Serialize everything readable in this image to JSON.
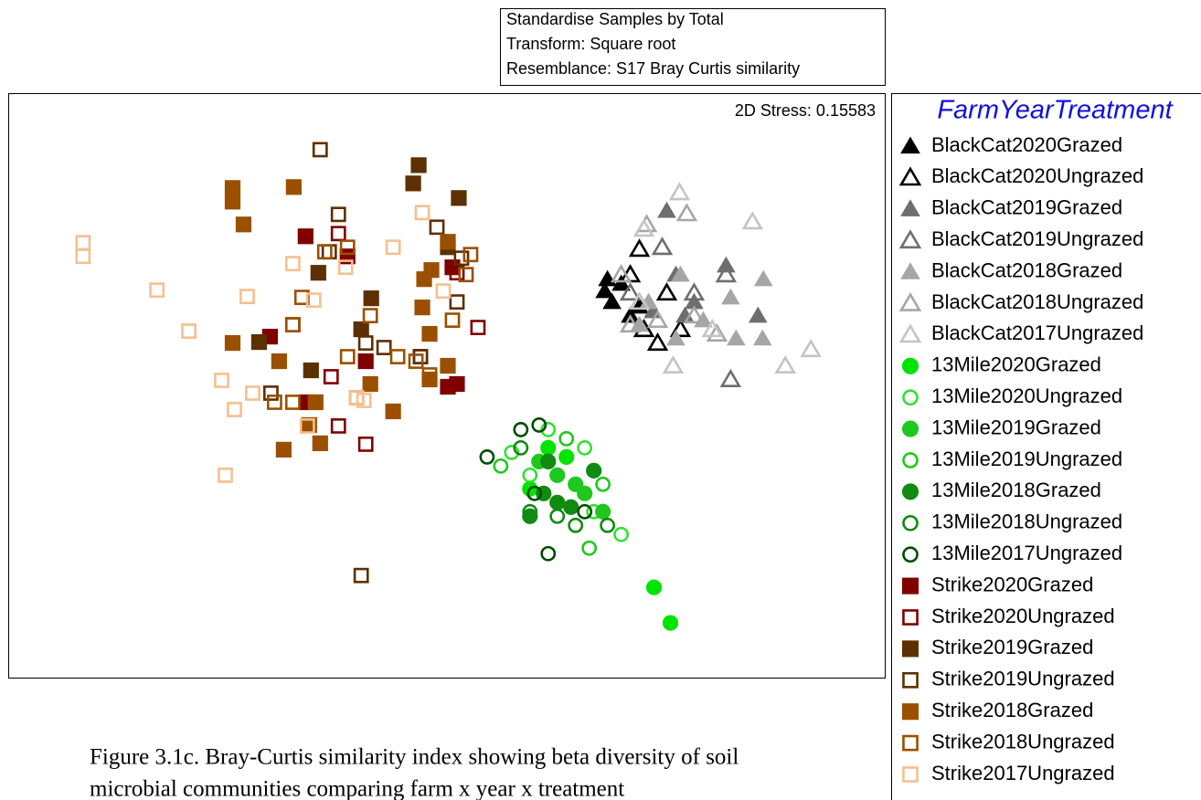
{
  "chart_data": {
    "type": "scatter",
    "info_box": [
      "Standardise Samples by Total",
      "Transform: Square root",
      "Resemblance: S17 Bray Curtis similarity"
    ],
    "annotation": "2D Stress: 0.15583",
    "legend_title": "FarmYearTreatment",
    "legend": "right",
    "caption_lines": [
      "Figure 3.1c. Bray-Curtis similarity index showing beta diversity of soil",
      "microbial communities comparing farm x year x treatment"
    ],
    "xlim": [
      0,
      96
    ],
    "ylim": [
      0,
      64
    ],
    "series": [
      {
        "name": "BlackCat2020Grazed",
        "color": "#000000",
        "marker": "triangle",
        "filled": true,
        "x": [
          65.3,
          66.1,
          67.1,
          68.1,
          69.1,
          65.6
        ],
        "y": [
          42.4,
          41.2,
          43.2,
          39.7,
          40.7,
          43.7
        ]
      },
      {
        "name": "BlackCat2020Ungrazed",
        "color": "#000000",
        "marker": "triangle",
        "filled": false,
        "x": [
          69.1,
          71.1,
          68.1,
          72.1,
          73.6,
          69.6
        ],
        "y": [
          47.0,
          36.7,
          44.2,
          42.2,
          38.2,
          38.2
        ]
      },
      {
        "name": "BlackCat2019Grazed",
        "color": "#6e6e6e",
        "marker": "triangle",
        "filled": true,
        "x": [
          72.1,
          75.1,
          78.6,
          82.1,
          73.1,
          70.6,
          74.1
        ],
        "y": [
          51.2,
          41.2,
          45.2,
          39.7,
          44.2,
          40.2,
          39.7
        ]
      },
      {
        "name": "BlackCat2019Ungrazed",
        "color": "#6e6e6e",
        "marker": "triangle",
        "filled": false,
        "x": [
          79.1,
          78.6,
          71.6,
          75.1,
          68.1
        ],
        "y": [
          32.7,
          44.2,
          47.2,
          42.2,
          42.2
        ]
      },
      {
        "name": "BlackCat2018Grazed",
        "color": "#a6a6a6",
        "marker": "triangle",
        "filled": true,
        "x": [
          82.7,
          79.1,
          79.7,
          82.6,
          73.6,
          70.1,
          76.1,
          69.1,
          73.1
        ],
        "y": [
          43.7,
          41.7,
          37.2,
          37.2,
          44.2,
          41.2,
          39.2,
          38.7,
          37.2
        ]
      },
      {
        "name": "BlackCat2018Ungrazed",
        "color": "#a6a6a6",
        "marker": "triangle",
        "filled": false,
        "x": [
          74.3,
          69.9,
          77.6,
          67.1,
          71.1,
          75.1,
          68.1
        ],
        "y": [
          50.9,
          49.7,
          37.7,
          44.2,
          39.2,
          39.7,
          38.7
        ]
      },
      {
        "name": "BlackCat2017Ungrazed",
        "color": "#c4c4c4",
        "marker": "triangle",
        "filled": false,
        "x": [
          73.5,
          81.5,
          87.9,
          85.1,
          72.8,
          69.6,
          77.1,
          69.1
        ],
        "y": [
          53.2,
          50.0,
          36.0,
          34.2,
          34.2,
          49.2,
          38.2,
          41.2
        ]
      },
      {
        "name": "13Mile2020Grazed",
        "color": "#00e400",
        "marker": "circle",
        "filled": true,
        "x": [
          70.7,
          72.5,
          57.1,
          61.1,
          59.1
        ],
        "y": [
          9.9,
          6.0,
          20.7,
          24.2,
          25.2
        ]
      },
      {
        "name": "13Mile2020Ungrazed",
        "color": "#33e033",
        "marker": "circle",
        "filled": false,
        "x": [
          55.1,
          57.1,
          63.1,
          67.1,
          59.1,
          64.1
        ],
        "y": [
          24.7,
          22.2,
          25.2,
          15.7,
          27.2,
          18.2
        ]
      },
      {
        "name": "13Mile2019Grazed",
        "color": "#1ec81e",
        "marker": "circle",
        "filled": true,
        "x": [
          60.1,
          62.1,
          65.1,
          58.1,
          63.1
        ],
        "y": [
          22.2,
          21.2,
          18.2,
          23.7,
          20.2
        ]
      },
      {
        "name": "13Mile2019Ungrazed",
        "color": "#1ec81e",
        "marker": "circle",
        "filled": false,
        "x": [
          53.9,
          61.1,
          65.1,
          63.6
        ],
        "y": [
          23.2,
          26.2,
          21.2,
          14.2
        ]
      },
      {
        "name": "13Mile2018Grazed",
        "color": "#108a10",
        "marker": "circle",
        "filled": true,
        "x": [
          58.6,
          60.1,
          61.6,
          57.1,
          64.1,
          59.1
        ],
        "y": [
          20.2,
          19.2,
          18.7,
          17.7,
          22.7,
          23.7
        ]
      },
      {
        "name": "13Mile2018Ungrazed",
        "color": "#108a10",
        "marker": "circle",
        "filled": false,
        "x": [
          62.1,
          57.1,
          65.6,
          60.1,
          56.1
        ],
        "y": [
          16.7,
          18.2,
          16.7,
          17.7,
          25.2
        ]
      },
      {
        "name": "13Mile2017Ungrazed",
        "color": "#004d00",
        "marker": "circle",
        "filled": false,
        "x": [
          52.4,
          59.1,
          56.1,
          58.1,
          57.6,
          63.1
        ],
        "y": [
          24.2,
          13.6,
          27.2,
          27.7,
          20.2,
          18.2
        ]
      },
      {
        "name": "Strike2020Grazed",
        "color": "#800000",
        "marker": "square",
        "filled": true,
        "x": [
          32.5,
          37.1,
          28.6,
          48.6,
          39.1,
          48.1,
          49.1,
          32.6
        ],
        "y": [
          48.4,
          46.2,
          37.4,
          45.0,
          34.7,
          31.9,
          32.2,
          30.2
        ]
      },
      {
        "name": "Strike2020Ungrazed",
        "color": "#800000",
        "marker": "square",
        "filled": false,
        "x": [
          51.4,
          36.1,
          39.1,
          36.1,
          35.3,
          49.1,
          45.1
        ],
        "y": [
          38.4,
          48.7,
          25.6,
          27.6,
          33.0,
          44.4,
          35.2
        ]
      },
      {
        "name": "Strike2019Grazed",
        "color": "#5c3000",
        "marker": "square",
        "filled": true,
        "x": [
          44.9,
          44.3,
          49.3,
          39.7,
          33.9,
          27.4,
          33.1,
          48.1,
          38.6
        ],
        "y": [
          56.2,
          54.2,
          52.6,
          41.6,
          44.4,
          36.8,
          33.7,
          47.2,
          38.2
        ]
      },
      {
        "name": "Strike2019Ungrazed",
        "color": "#5c3000",
        "marker": "square",
        "filled": false,
        "x": [
          34.1,
          36.1,
          31.1,
          46.9,
          49.1,
          39.1,
          45.1,
          28.7,
          38.6,
          49.6,
          35.1,
          41.1
        ],
        "y": [
          57.9,
          50.8,
          38.7,
          49.4,
          41.2,
          36.7,
          35.2,
          31.2,
          11.2,
          46.0,
          46.7,
          36.2
        ]
      },
      {
        "name": "Strike2018Grazed",
        "color": "#9a5000",
        "marker": "square",
        "filled": true,
        "x": [
          24.5,
          24.5,
          25.7,
          31.2,
          45.5,
          46.3,
          45.3,
          48.1,
          24.5,
          42.1,
          30.1,
          34.1,
          32.9,
          48.1,
          46.1,
          39.6,
          33.6,
          46.1,
          29.6
        ],
        "y": [
          53.7,
          52.2,
          49.7,
          53.8,
          43.7,
          44.7,
          40.6,
          47.8,
          36.7,
          29.2,
          25.0,
          25.7,
          27.7,
          34.2,
          32.7,
          32.2,
          30.2,
          37.7,
          34.7
        ]
      },
      {
        "name": "Strike2018Ungrazed",
        "color": "#9a5000",
        "marker": "square",
        "filled": false,
        "x": [
          34.6,
          37.1,
          31.1,
          37.1,
          42.6,
          46.1,
          29.1,
          31.1,
          38.1,
          50.1,
          50.6,
          48.6,
          39.6,
          32.1,
          44.6
        ],
        "y": [
          46.7,
          47.2,
          38.7,
          35.2,
          35.2,
          33.2,
          30.2,
          30.2,
          30.7,
          44.2,
          46.4,
          39.2,
          39.7,
          41.7,
          34.7
        ]
      },
      {
        "name": "Strike2017Ungrazed",
        "color": "#f5c090",
        "marker": "square",
        "filled": false,
        "x": [
          8.1,
          8.1,
          16.2,
          19.7,
          26.1,
          31.1,
          33.4,
          36.9,
          42.1,
          45.3,
          47.6,
          23.3,
          24.7,
          26.7,
          23.7,
          38.1,
          38.9,
          32.7
        ],
        "y": [
          47.7,
          46.2,
          42.5,
          38.0,
          41.8,
          45.4,
          41.4,
          45.0,
          47.2,
          51.0,
          42.4,
          32.6,
          29.4,
          31.2,
          22.2,
          30.7,
          30.4,
          27.6
        ]
      }
    ]
  }
}
